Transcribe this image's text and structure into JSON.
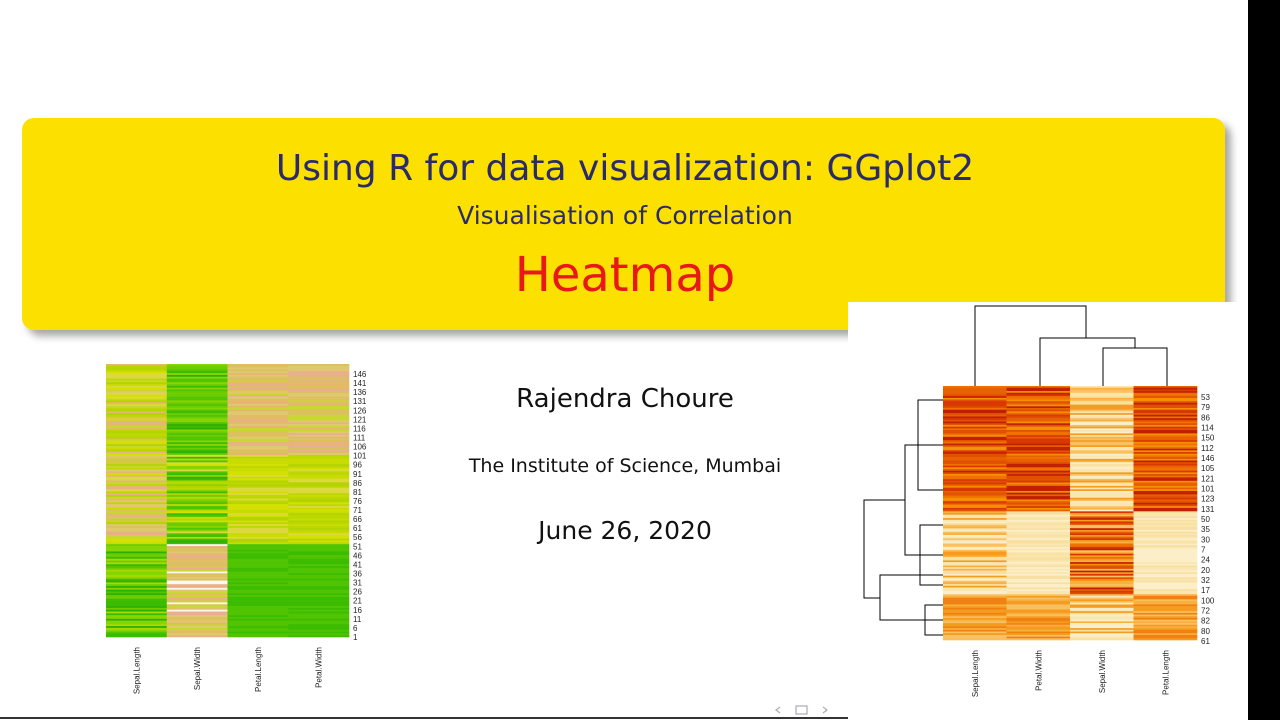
{
  "slide": {
    "title": "Using R for data visualization: GGplot2",
    "subtitle": "Visualisation of Correlation",
    "heading": "Heatmap",
    "author": "Rajendra Choure",
    "institute": "The Institute of Science, Mumbai",
    "date": "June 26, 2020"
  },
  "left_heatmap": {
    "columns": [
      "Sepal.Length",
      "Sepal.Width",
      "Petal.Length",
      "Petal.Width"
    ],
    "row_labels": [
      "146",
      "141",
      "136",
      "131",
      "126",
      "121",
      "116",
      "111",
      "106",
      "101",
      "96",
      "91",
      "86",
      "81",
      "76",
      "71",
      "66",
      "61",
      "56",
      "51",
      "46",
      "41",
      "36",
      "31",
      "26",
      "21",
      "16",
      "11",
      "6",
      "1"
    ]
  },
  "right_heatmap": {
    "columns": [
      "Sepal.Length",
      "Petal.Width",
      "Sepal.Width",
      "Petal.Length"
    ],
    "row_labels": [
      "53",
      "79",
      "86",
      "114",
      "150",
      "112",
      "146",
      "105",
      "121",
      "101",
      "123",
      "131",
      "50",
      "35",
      "30",
      "7",
      "24",
      "20",
      "32",
      "17",
      "100",
      "72",
      "82",
      "80",
      "61"
    ]
  }
}
